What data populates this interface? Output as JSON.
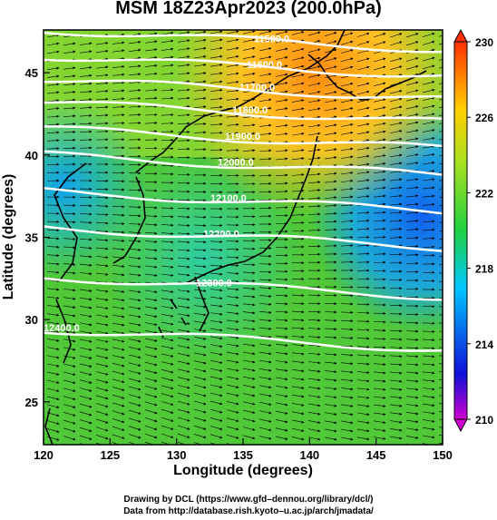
{
  "title": "MSM 18Z23Apr2023 (200.0hPa)",
  "x_axis": {
    "label": "Longitude (degrees)",
    "ticks": [
      120,
      125,
      130,
      135,
      140,
      145,
      150
    ],
    "range": [
      120,
      150
    ]
  },
  "y_axis": {
    "label": "Latitude  (degrees)",
    "ticks": [
      25,
      30,
      35,
      40,
      45
    ],
    "range": [
      22.4,
      47.6
    ]
  },
  "colorbar": {
    "min": 210,
    "max": 230,
    "ticks": [
      210,
      214,
      218,
      222,
      226,
      230
    ],
    "colors": [
      "#e000e0",
      "#2020e0",
      "#00c8ff",
      "#20d840",
      "#a0e020",
      "#ffd000",
      "#ff4000"
    ]
  },
  "contours": [
    {
      "label": "11500.0",
      "lat": 47.6
    },
    {
      "label": "11600.0",
      "lat": 46.0
    },
    {
      "label": "11700.0",
      "lat": 44.6
    },
    {
      "label": "11800.0",
      "lat": 43.2
    },
    {
      "label": "11900.0",
      "lat": 41.6
    },
    {
      "label": "12000.0",
      "lat": 40.0
    },
    {
      "label": "12100.0",
      "lat": 37.8
    },
    {
      "label": "12200.0",
      "lat": 35.6
    },
    {
      "label": "12300.0",
      "lat": 32.6
    },
    {
      "label": "12400.0",
      "lat": 29.4
    }
  ],
  "credits": {
    "line1": "Drawing by DCL (https://www.gfd–dennou.org/library/dcl/)",
    "line2": "Data from http://database.rish.kyoto–u.ac.jp/arch/jmadata/"
  }
}
